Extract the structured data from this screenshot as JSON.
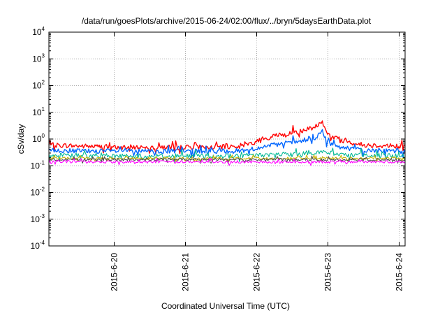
{
  "chart_data": {
    "type": "line",
    "title": "/data/run/goesPlots/archive/2015-06-24/02:00/flux/../bryn/5daysEarthData.plot",
    "xlabel": "Coordinated Universal Time (UTC)",
    "ylabel": "cSv/day",
    "yscale": "log",
    "ylim": [
      0.0001,
      10000
    ],
    "xlim": [
      "2015-06-19T02:00",
      "2015-06-24T02:00"
    ],
    "grid": true,
    "legend": "none",
    "y_ticks": [
      {
        "base": "10",
        "exp": "-4",
        "value": 0.0001
      },
      {
        "base": "10",
        "exp": "-3",
        "value": 0.001
      },
      {
        "base": "10",
        "exp": "-2",
        "value": 0.01
      },
      {
        "base": "10",
        "exp": "-1",
        "value": 0.1
      },
      {
        "base": "10",
        "exp": "0",
        "value": 1
      },
      {
        "base": "10",
        "exp": "1",
        "value": 10
      },
      {
        "base": "10",
        "exp": "2",
        "value": 100
      },
      {
        "base": "10",
        "exp": "3",
        "value": 1000
      },
      {
        "base": "10",
        "exp": "4",
        "value": 10000
      }
    ],
    "x_ticks": [
      {
        "label": "2015-6-20",
        "value": "2015-06-20T00:00"
      },
      {
        "label": "2015-6-21",
        "value": "2015-06-21T00:00"
      },
      {
        "label": "2015-6-22",
        "value": "2015-06-22T00:00"
      },
      {
        "label": "2015-6-23",
        "value": "2015-06-23T00:00"
      },
      {
        "label": "2015-6-24",
        "value": "2015-06-24T00:00"
      }
    ],
    "series": [
      {
        "color": "#ff0000",
        "x": [
          "2015-06-19T02:00",
          "2015-06-19T12:00",
          "2015-06-20T00:00",
          "2015-06-20T12:00",
          "2015-06-21T00:00",
          "2015-06-21T12:00",
          "2015-06-21T18:00",
          "2015-06-22T00:00",
          "2015-06-22T06:00",
          "2015-06-22T12:00",
          "2015-06-22T16:00",
          "2015-06-22T20:00",
          "2015-06-22T22:00",
          "2015-06-23T00:00",
          "2015-06-23T06:00",
          "2015-06-23T12:00",
          "2015-06-24T00:00",
          "2015-06-24T02:00"
        ],
        "values": [
          0.6,
          0.55,
          0.5,
          0.5,
          0.5,
          0.5,
          0.55,
          0.8,
          1.3,
          1.8,
          2.0,
          3.0,
          5.0,
          1.5,
          0.8,
          0.6,
          0.55,
          0.5
        ]
      },
      {
        "color": "#0066ff",
        "x": [
          "2015-06-19T02:00",
          "2015-06-19T12:00",
          "2015-06-20T00:00",
          "2015-06-20T12:00",
          "2015-06-21T00:00",
          "2015-06-21T12:00",
          "2015-06-21T18:00",
          "2015-06-22T00:00",
          "2015-06-22T06:00",
          "2015-06-22T12:00",
          "2015-06-22T16:00",
          "2015-06-22T20:00",
          "2015-06-22T22:00",
          "2015-06-23T00:00",
          "2015-06-23T06:00",
          "2015-06-23T12:00",
          "2015-06-24T00:00",
          "2015-06-24T02:00"
        ],
        "values": [
          0.38,
          0.36,
          0.35,
          0.35,
          0.35,
          0.35,
          0.36,
          0.45,
          0.6,
          0.75,
          0.85,
          1.1,
          2.0,
          0.7,
          0.45,
          0.38,
          0.36,
          0.35
        ]
      },
      {
        "color": "#00b894",
        "x": [
          "2015-06-19T02:00",
          "2015-06-20T12:00",
          "2015-06-21T12:00",
          "2015-06-22T00:00",
          "2015-06-22T12:00",
          "2015-06-22T22:00",
          "2015-06-23T06:00",
          "2015-06-24T02:00"
        ],
        "values": [
          0.24,
          0.23,
          0.23,
          0.25,
          0.28,
          0.33,
          0.26,
          0.24
        ]
      },
      {
        "color": "#c8b400",
        "x": [
          "2015-06-19T02:00",
          "2015-06-24T02:00"
        ],
        "values": [
          0.19,
          0.19
        ]
      },
      {
        "color": "#4d4d4d",
        "x": [
          "2015-06-19T02:00",
          "2015-06-24T02:00"
        ],
        "values": [
          0.17,
          0.17
        ]
      },
      {
        "color": "#ff00ff",
        "x": [
          "2015-06-19T02:00",
          "2015-06-24T02:00"
        ],
        "values": [
          0.14,
          0.14
        ]
      }
    ]
  }
}
